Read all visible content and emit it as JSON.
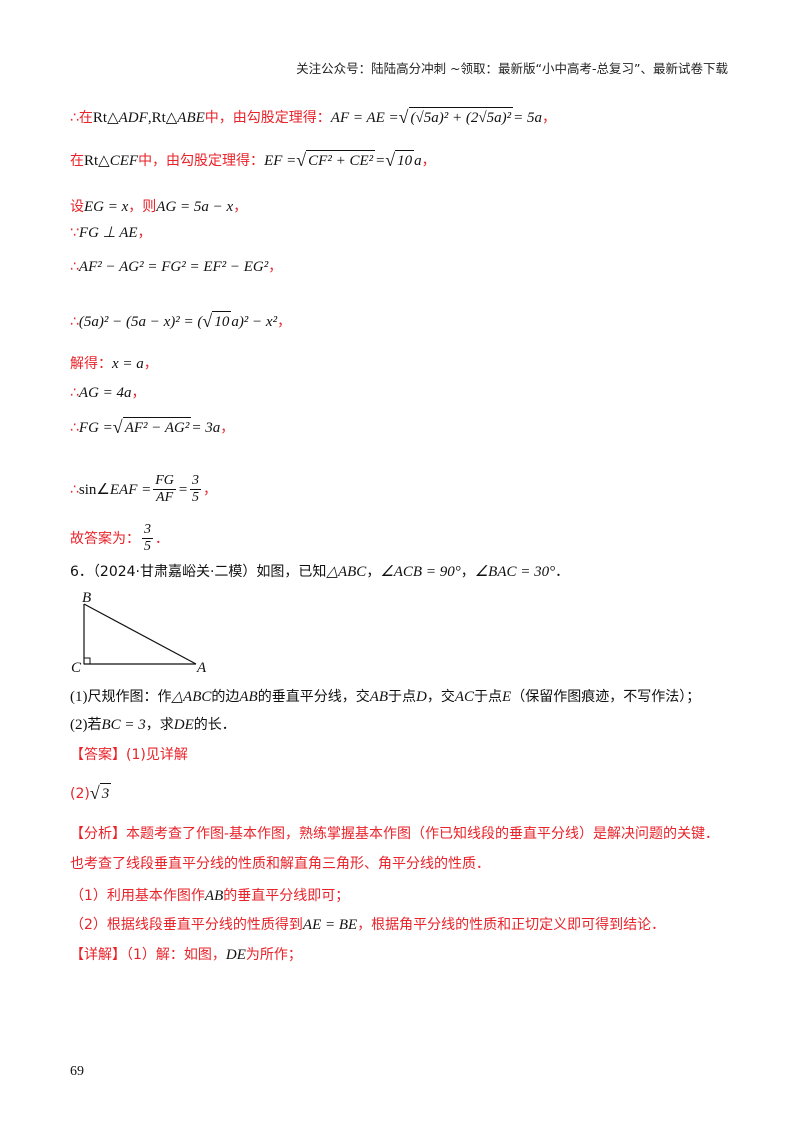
{
  "header": "关注公众号：陆陆高分冲刺  ~领取：最新版“小中高考-总复习”、最新试卷下载",
  "lines": [
    [
      {
        "r": "∴在"
      },
      {
        "n": "Rt△"
      },
      {
        "m": "ADF"
      },
      {
        "n": ",Rt△"
      },
      {
        "m": "ABE"
      },
      {
        "r": "中，由勾股定理得："
      },
      {
        "m": "AF = AE = "
      },
      {
        "sqrt": "(√5a)² + (2√5a)²"
      },
      {
        "m": " = 5a"
      },
      {
        "r": "，"
      }
    ],
    [
      {
        "r": "在"
      },
      {
        "n": "Rt△"
      },
      {
        "m": "CEF"
      },
      {
        "r": "中，由勾股定理得："
      },
      {
        "m": "EF = "
      },
      {
        "sqrt": "CF² + CE²"
      },
      {
        "m": " = "
      },
      {
        "sqrt": "10"
      },
      {
        "m": "a"
      },
      {
        "r": "，"
      }
    ],
    [
      {
        "r": "设"
      },
      {
        "m": "EG = x"
      },
      {
        "r": "，则"
      },
      {
        "m": "AG = 5a − x"
      },
      {
        "r": "，"
      }
    ],
    [
      {
        "r": "∵"
      },
      {
        "m": "FG ⊥ AE"
      },
      {
        "r": "，"
      }
    ],
    [
      {
        "r": "∴"
      },
      {
        "m": "AF² − AG² = FG² = EF² − EG²"
      },
      {
        "r": "，"
      }
    ],
    [
      {
        "r": "∴"
      },
      {
        "m": "(5a)² − (5a − x)² = ("
      },
      {
        "sqrt": "10"
      },
      {
        "m": "a)² − x²"
      },
      {
        "r": "，"
      }
    ],
    [
      {
        "r": "解得："
      },
      {
        "m": "x = a"
      },
      {
        "r": "，"
      }
    ],
    [
      {
        "r": "∴"
      },
      {
        "m": "AG = 4a"
      },
      {
        "r": "，"
      }
    ],
    [
      {
        "r": "∴"
      },
      {
        "m": "FG = "
      },
      {
        "sqrt": "AF² − AG²"
      },
      {
        "m": " = 3a"
      },
      {
        "r": "，"
      }
    ],
    [
      {
        "r": "∴"
      },
      {
        "n": "sin∠"
      },
      {
        "m": "EAF = "
      },
      {
        "num": "FG",
        "den": "AF"
      },
      {
        "m": " = "
      },
      {
        "num": "3",
        "den": "5"
      },
      {
        "r": "，"
      }
    ],
    [
      {
        "r": "故答案为："
      },
      {
        "num": "3",
        "den": "5"
      },
      {
        "r": "．"
      }
    ],
    [
      {
        "k": "6．（2024·甘肃嘉峪关·二模）如图，已知"
      },
      {
        "m": "△ABC"
      },
      {
        "k": "，"
      },
      {
        "m": "∠ACB = 90°"
      },
      {
        "k": "，"
      },
      {
        "m": "∠BAC = 30°"
      },
      {
        "k": "．"
      }
    ],
    [
      {
        "n": "(1)"
      },
      {
        "k": "尺规作图：作"
      },
      {
        "m": "△ABC"
      },
      {
        "k": "的边"
      },
      {
        "m": "AB"
      },
      {
        "k": "的垂直平分线，交"
      },
      {
        "m": "AB"
      },
      {
        "k": "于点"
      },
      {
        "m": "D"
      },
      {
        "k": "，交"
      },
      {
        "m": "AC"
      },
      {
        "k": "于点"
      },
      {
        "m": "E"
      },
      {
        "k": "（保留作图痕迹，不写作法）；"
      }
    ],
    [
      {
        "n": "(2)"
      },
      {
        "k": "若"
      },
      {
        "m": "BC = 3"
      },
      {
        "k": "，求"
      },
      {
        "m": "DE"
      },
      {
        "k": "的长．"
      }
    ],
    [
      {
        "r": "【答案】(1)见详解"
      }
    ],
    [
      {
        "r": "(2)"
      },
      {
        "sqrt": "3"
      }
    ],
    [
      {
        "r": "【分析】本题考查了作图-基本作图，熟练掌握基本作图（作已知线段的垂直平分线）是解决问题的关键．"
      }
    ],
    [
      {
        "r": "也考查了线段垂直平分线的性质和解直角三角形、角平分线的性质．"
      }
    ],
    [
      {
        "r": "（1）利用基本作图作"
      },
      {
        "m": "AB"
      },
      {
        "r": "的垂直平分线即可；"
      }
    ],
    [
      {
        "r": "（2）根据线段垂直平分线的性质得到"
      },
      {
        "m": "AE = BE"
      },
      {
        "r": "，根据角平分线的性质和正切定义即可得到结论．"
      }
    ],
    [
      {
        "r": "【详解】（1）解：如图，"
      },
      {
        "m": "DE"
      },
      {
        "r": "为所作；"
      }
    ]
  ],
  "figure": {
    "labels": [
      "B",
      "C",
      "A"
    ]
  },
  "page_number": "69"
}
